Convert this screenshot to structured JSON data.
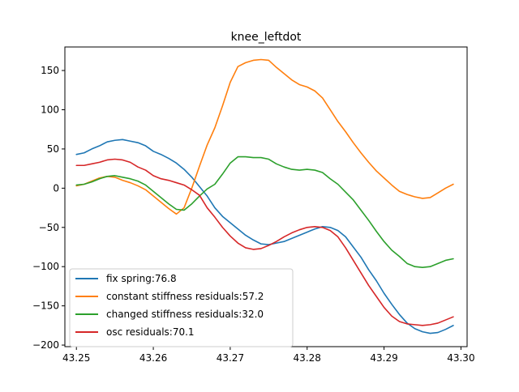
{
  "chart_data": {
    "type": "line",
    "title": "knee_leftdot",
    "xlabel": "",
    "ylabel": "",
    "xlim": [
      43.2485,
      43.3008
    ],
    "ylim": [
      -202,
      180
    ],
    "xticks": [
      43.25,
      43.26,
      43.27,
      43.28,
      43.29,
      43.3
    ],
    "xtick_labels": [
      "43.25",
      "43.26",
      "43.27",
      "43.28",
      "43.29",
      "43.30"
    ],
    "yticks": [
      -200,
      -150,
      -100,
      -50,
      0,
      50,
      100,
      150
    ],
    "ytick_labels": [
      "−200",
      "−150",
      "−100",
      "−50",
      "0",
      "50",
      "100",
      "150"
    ],
    "grid": false,
    "legend_position": "lower-left",
    "series": [
      {
        "name": "fix spring:76.8",
        "color": "#1f77b4",
        "x": [
          43.25,
          43.251,
          43.252,
          43.253,
          43.254,
          43.255,
          43.256,
          43.257,
          43.258,
          43.259,
          43.26,
          43.261,
          43.262,
          43.263,
          43.264,
          43.265,
          43.266,
          43.267,
          43.268,
          43.269,
          43.27,
          43.271,
          43.272,
          43.273,
          43.274,
          43.275,
          43.276,
          43.277,
          43.278,
          43.279,
          43.28,
          43.281,
          43.282,
          43.283,
          43.284,
          43.285,
          43.286,
          43.287,
          43.288,
          43.289,
          43.29,
          43.291,
          43.292,
          43.293,
          43.294,
          43.295,
          43.296,
          43.297,
          43.298,
          43.299
        ],
        "y": [
          43,
          45,
          50,
          54,
          59,
          61,
          62,
          60,
          58,
          54,
          47,
          43,
          38,
          32,
          24,
          14,
          2,
          -10,
          -25,
          -36,
          -44,
          -52,
          -60,
          -66,
          -71,
          -72,
          -70,
          -68,
          -64,
          -60,
          -56,
          -52,
          -49,
          -50,
          -54,
          -62,
          -75,
          -88,
          -104,
          -118,
          -134,
          -148,
          -161,
          -172,
          -179,
          -183,
          -185,
          -184,
          -180,
          -175
        ]
      },
      {
        "name": "constant stiffness residuals:57.2",
        "color": "#ff7f0e",
        "x": [
          43.25,
          43.251,
          43.252,
          43.253,
          43.254,
          43.255,
          43.256,
          43.257,
          43.258,
          43.259,
          43.26,
          43.261,
          43.262,
          43.263,
          43.264,
          43.265,
          43.266,
          43.267,
          43.268,
          43.269,
          43.27,
          43.271,
          43.272,
          43.273,
          43.274,
          43.275,
          43.276,
          43.277,
          43.278,
          43.279,
          43.28,
          43.281,
          43.282,
          43.283,
          43.284,
          43.285,
          43.286,
          43.287,
          43.288,
          43.289,
          43.29,
          43.291,
          43.292,
          43.293,
          43.294,
          43.295,
          43.296,
          43.297,
          43.298,
          43.299
        ],
        "y": [
          3,
          5,
          9,
          13,
          15,
          14,
          10,
          7,
          3,
          -2,
          -10,
          -18,
          -26,
          -33,
          -25,
          0,
          28,
          55,
          77,
          105,
          135,
          155,
          160,
          163,
          164,
          163,
          154,
          146,
          138,
          132,
          129,
          124,
          115,
          100,
          85,
          72,
          58,
          45,
          33,
          22,
          13,
          4,
          -4,
          -8,
          -11,
          -13,
          -12,
          -6,
          0,
          5
        ]
      },
      {
        "name": "changed stiffness residuals:32.0",
        "color": "#2ca02c",
        "x": [
          43.25,
          43.251,
          43.252,
          43.253,
          43.254,
          43.255,
          43.256,
          43.257,
          43.258,
          43.259,
          43.26,
          43.261,
          43.262,
          43.263,
          43.264,
          43.265,
          43.266,
          43.267,
          43.268,
          43.269,
          43.27,
          43.271,
          43.272,
          43.273,
          43.274,
          43.275,
          43.276,
          43.277,
          43.278,
          43.279,
          43.28,
          43.281,
          43.282,
          43.283,
          43.284,
          43.285,
          43.286,
          43.287,
          43.288,
          43.289,
          43.29,
          43.291,
          43.292,
          43.293,
          43.294,
          43.295,
          43.296,
          43.297,
          43.298,
          43.299
        ],
        "y": [
          4,
          5,
          8,
          12,
          15,
          16,
          14,
          12,
          9,
          4,
          -4,
          -12,
          -20,
          -27,
          -28,
          -20,
          -10,
          -1,
          5,
          18,
          32,
          40,
          40,
          39,
          39,
          37,
          31,
          27,
          24,
          23,
          24,
          23,
          20,
          12,
          5,
          -5,
          -15,
          -28,
          -41,
          -55,
          -68,
          -79,
          -87,
          -96,
          -100,
          -101,
          -100,
          -96,
          -92,
          -90
        ]
      },
      {
        "name": "osc residuals:70.1",
        "color": "#d62728",
        "x": [
          43.25,
          43.251,
          43.252,
          43.253,
          43.254,
          43.255,
          43.256,
          43.257,
          43.258,
          43.259,
          43.26,
          43.261,
          43.262,
          43.263,
          43.264,
          43.265,
          43.266,
          43.267,
          43.268,
          43.269,
          43.27,
          43.271,
          43.272,
          43.273,
          43.274,
          43.275,
          43.276,
          43.277,
          43.278,
          43.279,
          43.28,
          43.281,
          43.282,
          43.283,
          43.284,
          43.285,
          43.286,
          43.287,
          43.288,
          43.289,
          43.29,
          43.291,
          43.292,
          43.293,
          43.294,
          43.295,
          43.296,
          43.297,
          43.298,
          43.299
        ],
        "y": [
          29,
          29,
          31,
          33,
          36,
          37,
          36,
          33,
          27,
          23,
          16,
          12,
          10,
          7,
          4,
          -2,
          -9,
          -25,
          -37,
          -50,
          -61,
          -70,
          -76,
          -78,
          -77,
          -73,
          -68,
          -62,
          -57,
          -53,
          -50,
          -49,
          -50,
          -54,
          -62,
          -76,
          -92,
          -108,
          -124,
          -138,
          -152,
          -163,
          -170,
          -173,
          -174,
          -175,
          -174,
          -172,
          -168,
          -164
        ]
      }
    ]
  }
}
